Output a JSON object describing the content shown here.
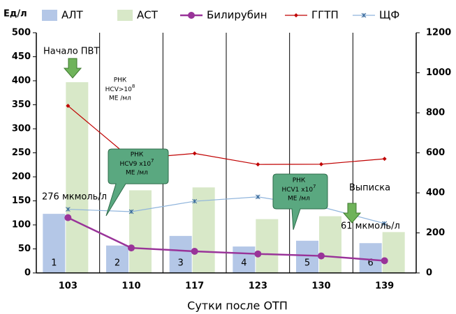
{
  "chart_data": {
    "type": "combo",
    "ylabel": "Ед/л",
    "xlabel": "Сутки после ОТП",
    "categories": [
      "103",
      "110",
      "117",
      "123",
      "130",
      "139"
    ],
    "bar_labels": [
      "1",
      "2",
      "3",
      "4",
      "5",
      "6"
    ],
    "ylim": [
      0,
      500
    ],
    "yticks": [
      0,
      50,
      100,
      150,
      200,
      250,
      300,
      350,
      400,
      450,
      500
    ],
    "y2lim": [
      0,
      1200
    ],
    "y2ticks": [
      0,
      200,
      400,
      600,
      800,
      1000,
      1200
    ],
    "series": [
      {
        "name": "АЛТ",
        "kind": "bar",
        "color": "#b4c7e7",
        "values": [
          123,
          57,
          77,
          55,
          67,
          62
        ]
      },
      {
        "name": "АСТ",
        "kind": "bar",
        "color": "#d8e8c8",
        "values": [
          397,
          172,
          178,
          112,
          118,
          85
        ]
      },
      {
        "name": "Билирубин",
        "kind": "line",
        "axis": "y2",
        "color": "#993399",
        "marker": "circle",
        "values": [
          276,
          125,
          108,
          95,
          85,
          61
        ]
      },
      {
        "name": "ГГТП",
        "kind": "line",
        "axis": "y2",
        "color": "#c00000",
        "marker": "diamond",
        "values": [
          835,
          570,
          597,
          542,
          543,
          570
        ]
      },
      {
        "name": "ЩФ",
        "kind": "line",
        "axis": "y2",
        "color": "#8fb4dc",
        "marker": "star",
        "values": [
          318,
          306,
          358,
          380,
          330,
          247
        ]
      }
    ],
    "annotations": {
      "start": "Начало ПВТ",
      "rna1": [
        "РНК",
        "HCV>10",
        "8",
        "МЕ /мл"
      ],
      "rna2": [
        "РНК",
        "HCV9 x10",
        "7",
        "МЕ /мл"
      ],
      "rna3": [
        "РНК",
        "HCV1 x10",
        "7",
        "МЕ /мл"
      ],
      "discharge": "Выписка",
      "bili_first": "276 мкмоль/л",
      "bili_last": "61 мкмоль/л"
    }
  }
}
